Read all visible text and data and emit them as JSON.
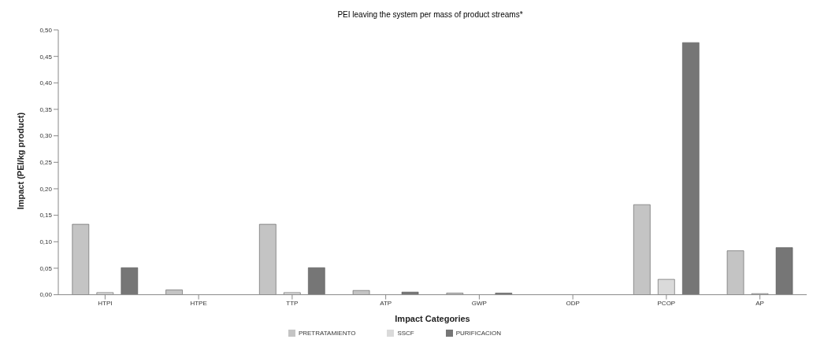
{
  "chart_data": {
    "type": "bar",
    "title": "PEI leaving the system per mass of product streams*",
    "xlabel": "Impact Categories",
    "ylabel": "Impact (PEI/kg product)",
    "categories": [
      "HTPI",
      "HTPE",
      "TTP",
      "ATP",
      "GWP",
      "ODP",
      "PCOP",
      "AP"
    ],
    "series": [
      {
        "name": "PRETRATAMIENTO",
        "color": "#c4c4c4",
        "values": [
          0.133,
          0.009,
          0.133,
          0.008,
          0.003,
          0,
          0.17,
          0.083
        ]
      },
      {
        "name": "SSCF",
        "color": "#dadada",
        "values": [
          0.004,
          0,
          0.004,
          0,
          0,
          0,
          0.029,
          0.002
        ]
      },
      {
        "name": "PURIFICACION",
        "color": "#767676",
        "values": [
          0.051,
          0,
          0.051,
          0.005,
          0.003,
          0,
          0.476,
          0.089
        ]
      }
    ],
    "ylim": [
      0,
      0.5
    ],
    "yticks": [
      {
        "value": 0,
        "label": "0,00"
      },
      {
        "value": 0.05,
        "label": "0,05"
      },
      {
        "value": 0.1,
        "label": "0,10"
      },
      {
        "value": 0.15,
        "label": "0,15"
      },
      {
        "value": 0.2,
        "label": "0,20"
      },
      {
        "value": 0.25,
        "label": "0,25"
      },
      {
        "value": 0.3,
        "label": "0,30"
      },
      {
        "value": 0.35,
        "label": "0,35"
      },
      {
        "value": 0.4,
        "label": "0,40"
      },
      {
        "value": 0.45,
        "label": "0,45"
      },
      {
        "value": 0.5,
        "label": "0,50"
      }
    ],
    "grid": false,
    "legend": "bottom"
  }
}
